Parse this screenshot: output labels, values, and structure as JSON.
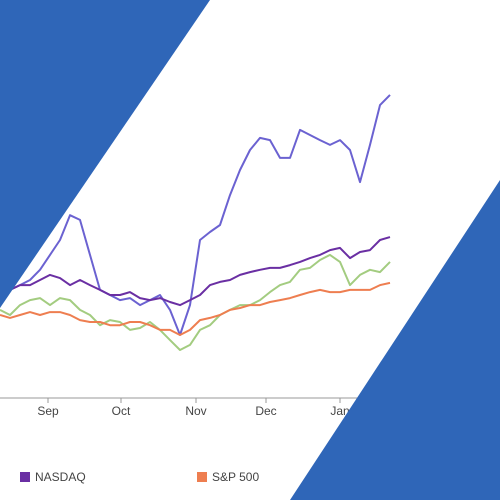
{
  "chart_data": {
    "type": "line",
    "x": [
      0,
      1,
      2,
      3,
      4,
      5,
      6,
      7,
      8,
      9,
      10,
      11,
      12,
      13,
      14,
      15,
      16,
      17,
      18,
      19,
      20,
      21,
      22,
      23,
      24,
      25,
      26,
      27,
      28,
      29,
      30,
      31,
      32,
      33,
      34,
      35,
      36,
      37,
      38,
      39
    ],
    "xlim": [
      0,
      39.5
    ],
    "xticks": [
      {
        "value": 4.8,
        "label": "Sep"
      },
      {
        "value": 12.1,
        "label": "Oct"
      },
      {
        "value": 19.6,
        "label": "Nov"
      },
      {
        "value": 26.6,
        "label": "Dec"
      },
      {
        "value": 34,
        "label": "Jan"
      }
    ],
    "ylim": [
      0,
      100
    ],
    "legend": "bottom-left",
    "series": [
      {
        "color": "#6b62d1",
        "values": [
          30.8,
          34,
          35.5,
          37.1,
          40.3,
          45,
          49.7,
          57.5,
          56,
          45,
          34,
          32.4,
          30.8,
          31.4,
          29.2,
          30.8,
          32.4,
          27.7,
          19.8,
          29.2,
          49.7,
          52.2,
          54.4,
          63.8,
          71.7,
          78,
          81.8,
          81.1,
          75.5,
          75.5,
          84.3,
          82.7,
          81.1,
          79.6,
          81.1,
          78,
          67.9,
          79.6,
          92.1,
          95.3
        ]
      },
      {
        "name": "NASDAQ",
        "color": "#6a2fa3",
        "values": [
          30.8,
          34,
          35.5,
          35.5,
          37.1,
          38.7,
          37.7,
          35.5,
          37.1,
          35.5,
          34,
          32.4,
          32.4,
          33.3,
          31.4,
          30.8,
          31.4,
          30.2,
          29.2,
          30.8,
          32.4,
          35.5,
          36.5,
          37.1,
          38.7,
          39.6,
          40.3,
          40.9,
          40.9,
          41.8,
          42.8,
          44,
          45,
          46.5,
          47.2,
          44,
          45.9,
          46.5,
          49.7,
          50.6
        ]
      },
      {
        "color": "#a3cc80",
        "values": [
          27.7,
          26.1,
          29.2,
          30.8,
          31.4,
          29.2,
          31.4,
          30.8,
          27.7,
          26.1,
          22.9,
          24.5,
          23.9,
          21.4,
          22,
          23.9,
          21.4,
          18.2,
          15.1,
          16.7,
          21.4,
          22.9,
          26.1,
          27.7,
          29.2,
          29.2,
          30.8,
          33.3,
          35.5,
          36.5,
          40.3,
          40.9,
          43.4,
          45,
          42.8,
          35.5,
          38.7,
          40.3,
          39.6,
          42.8
        ]
      },
      {
        "name": "S&P 500",
        "color": "#ee7e50",
        "values": [
          26.1,
          25.2,
          26.1,
          27,
          26.1,
          27,
          27,
          26.1,
          24.5,
          23.9,
          23.9,
          22.9,
          22.9,
          23.9,
          23.9,
          22.9,
          21.4,
          21.4,
          19.8,
          21.4,
          24.5,
          25.2,
          26.1,
          27.7,
          28.3,
          29.2,
          29.2,
          30.2,
          30.8,
          31.4,
          32.4,
          33.3,
          34,
          33.3,
          33.3,
          34,
          34,
          34,
          35.5,
          36.2
        ]
      }
    ]
  }
}
